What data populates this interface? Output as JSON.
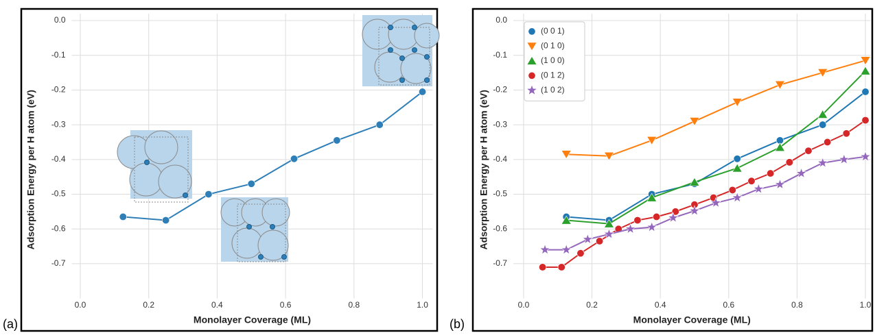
{
  "chart_data": [
    {
      "type": "line",
      "panel_label": "(a)",
      "xlabel": "Monolayer Coverage (ML)",
      "ylabel": "Adsorption Energy per H atom (eV)",
      "xlim": [
        -0.025,
        1.03
      ],
      "ylim": [
        -0.8,
        0.02
      ],
      "xticks": [
        {
          "value": 0,
          "label": "0.0"
        },
        0.2,
        0.4,
        0.6,
        0.8,
        {
          "value": 1,
          "label": "1.0"
        }
      ],
      "yticks": [
        {
          "value": 0,
          "label": "0.0"
        },
        -0.1,
        -0.2,
        -0.3,
        -0.4,
        -0.5,
        -0.6,
        -0.7
      ],
      "grid": true,
      "series": [
        {
          "color": "#2e7fb8",
          "marker": "circle",
          "x": [
            0.125,
            0.25,
            0.375,
            0.5,
            0.625,
            0.75,
            0.875,
            1.0
          ],
          "values": [
            -0.565,
            -0.575,
            -0.5,
            -0.47,
            -0.398,
            -0.345,
            -0.3,
            -0.205
          ]
        }
      ]
    },
    {
      "type": "line",
      "panel_label": "(b)",
      "xlabel": "Monolayer Coverage (ML)",
      "ylabel": "Adsorption Energy per H atom (eV)",
      "xlim": [
        -0.03,
        1.015
      ],
      "ylim": [
        -0.8,
        0.02
      ],
      "xticks": [
        {
          "value": 0,
          "label": "0.0"
        },
        0.2,
        0.4,
        0.6,
        0.8,
        {
          "value": 1,
          "label": "1.0"
        }
      ],
      "yticks": [
        {
          "value": 0,
          "label": "0.0"
        },
        -0.1,
        -0.2,
        -0.3,
        -0.4,
        -0.5,
        -0.6,
        -0.7
      ],
      "grid": true,
      "legend": "upper left",
      "series": [
        {
          "name": "(0 0 1)",
          "color": "#1f77b4",
          "marker": "circle",
          "x": [
            0.125,
            0.25,
            0.375,
            0.5,
            0.625,
            0.75,
            0.875,
            1.0
          ],
          "values": [
            -0.565,
            -0.575,
            -0.5,
            -0.47,
            -0.398,
            -0.345,
            -0.3,
            -0.205
          ]
        },
        {
          "name": "(0 1 0)",
          "color": "#ff7f0e",
          "marker": "triangle-down",
          "x": [
            0.125,
            0.25,
            0.375,
            0.5,
            0.625,
            0.75,
            0.875,
            1.0
          ],
          "values": [
            -0.385,
            -0.39,
            -0.345,
            -0.29,
            -0.235,
            -0.185,
            -0.15,
            -0.115
          ]
        },
        {
          "name": "(1 0 0)",
          "color": "#2ca02c",
          "marker": "triangle-up",
          "x": [
            0.125,
            0.25,
            0.375,
            0.5,
            0.625,
            0.75,
            0.875,
            1.0
          ],
          "values": [
            -0.575,
            -0.585,
            -0.51,
            -0.465,
            -0.425,
            -0.365,
            -0.27,
            -0.145
          ]
        },
        {
          "name": "(0 1 2)",
          "color": "#d62728",
          "marker": "circle",
          "x": [
            0.0556,
            0.1111,
            0.1667,
            0.2222,
            0.2778,
            0.3333,
            0.3889,
            0.4444,
            0.5,
            0.5556,
            0.6111,
            0.6667,
            0.7222,
            0.7778,
            0.8333,
            0.8889,
            0.9444,
            1.0
          ],
          "values": [
            -0.71,
            -0.71,
            -0.67,
            -0.635,
            -0.6,
            -0.575,
            -0.565,
            -0.55,
            -0.53,
            -0.51,
            -0.488,
            -0.462,
            -0.44,
            -0.408,
            -0.375,
            -0.35,
            -0.325,
            -0.287
          ]
        },
        {
          "name": "(1 0 2)",
          "color": "#9467bd",
          "marker": "star",
          "x": [
            0.0625,
            0.125,
            0.1875,
            0.25,
            0.3125,
            0.375,
            0.4375,
            0.5,
            0.5625,
            0.625,
            0.6875,
            0.75,
            0.8125,
            0.875,
            0.9375,
            1.0
          ],
          "values": [
            -0.66,
            -0.66,
            -0.63,
            -0.615,
            -0.6,
            -0.595,
            -0.568,
            -0.548,
            -0.525,
            -0.51,
            -0.485,
            -0.472,
            -0.44,
            -0.41,
            -0.4,
            -0.392
          ]
        }
      ]
    }
  ]
}
